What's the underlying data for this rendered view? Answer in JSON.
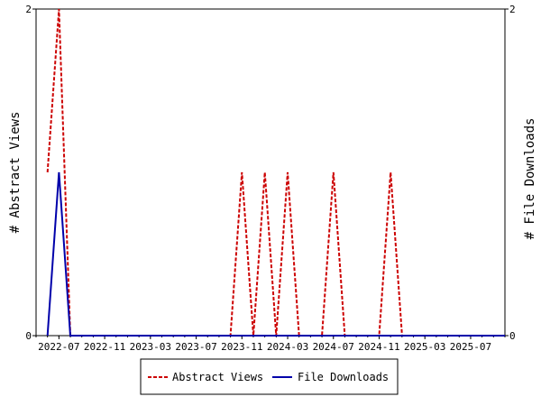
{
  "chart_data": {
    "type": "line",
    "x_start": "2022-05",
    "x_end": "2025-10",
    "x_ticks": [
      "2022-07",
      "2022-11",
      "2023-03",
      "2023-07",
      "2023-11",
      "2024-03",
      "2024-07",
      "2024-11",
      "2025-03",
      "2025-07"
    ],
    "left_axis": {
      "label": "# Abstract Views",
      "ylim": [
        0,
        2
      ],
      "ticks": [
        "0",
        "2"
      ]
    },
    "right_axis": {
      "label": "# File Downloads",
      "ylim": [
        0,
        2
      ],
      "ticks": [
        "0",
        "2"
      ]
    },
    "grid": false,
    "legend_position": "bottom",
    "series": [
      {
        "name": "Abstract Views",
        "color": "#cc0000",
        "style": "dashed",
        "axis": "left",
        "points": [
          [
            "2022-06",
            1
          ],
          [
            "2022-07",
            2
          ],
          [
            "2022-08",
            0
          ],
          [
            "2022-09",
            0
          ],
          [
            "2023-10",
            0
          ],
          [
            "2023-11",
            1
          ],
          [
            "2023-12",
            0
          ],
          [
            "2024-01",
            1
          ],
          [
            "2024-02",
            0
          ],
          [
            "2024-03",
            1
          ],
          [
            "2024-04",
            0
          ],
          [
            "2024-06",
            0
          ],
          [
            "2024-07",
            1
          ],
          [
            "2024-08",
            0
          ],
          [
            "2024-11",
            0
          ],
          [
            "2024-12",
            1
          ],
          [
            "2025-01",
            0
          ],
          [
            "2025-10",
            0
          ]
        ]
      },
      {
        "name": "File Downloads",
        "color": "#0000aa",
        "style": "solid",
        "axis": "right",
        "points": [
          [
            "2022-06",
            0
          ],
          [
            "2022-07",
            1
          ],
          [
            "2022-08",
            0
          ],
          [
            "2025-10",
            0
          ]
        ]
      }
    ]
  },
  "legend": {
    "items": [
      {
        "label": "Abstract Views",
        "color": "#cc0000",
        "style": "dashed"
      },
      {
        "label": "File Downloads",
        "color": "#0000aa",
        "style": "solid"
      }
    ]
  }
}
